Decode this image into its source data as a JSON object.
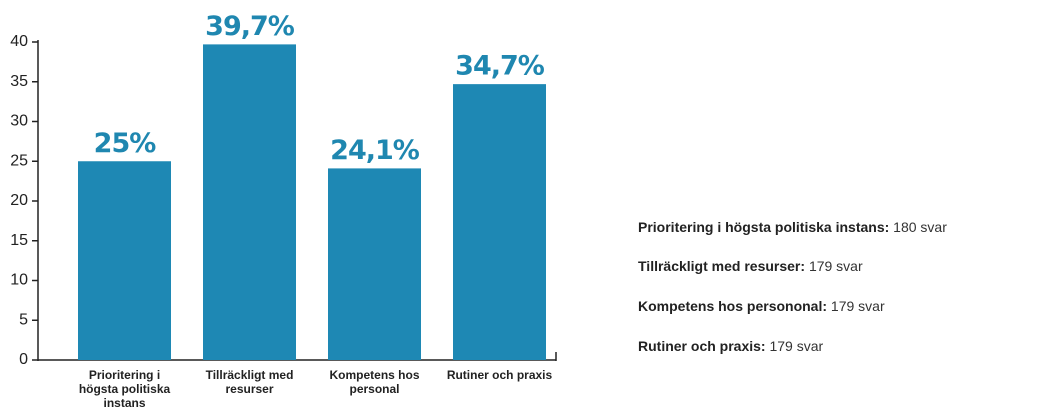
{
  "chart_data": {
    "type": "bar",
    "categories": [
      "Prioritering i högsta politiska instans",
      "Tillräckligt med resurser",
      "Kompetens hos personal",
      "Rutiner och praxis"
    ],
    "values": [
      25,
      39.7,
      24.1,
      34.7
    ],
    "value_labels": [
      "25%",
      "39,7%",
      "24,1%",
      "34,7%"
    ],
    "color": "#1e88b4",
    "ylim": [
      0,
      40
    ],
    "yticks": [
      0,
      5,
      10,
      15,
      20,
      25,
      30,
      35,
      40
    ],
    "grid": false,
    "notes": [
      {
        "label": "Prioritering i högsta politiska instans:",
        "text": "180 svar"
      },
      {
        "label": "Tillräckligt med resurser:",
        "text": "179 svar"
      },
      {
        "label": "Kompetens hos persononal:",
        "text": "179 svar"
      },
      {
        "label": "Rutiner och praxis:",
        "text": "179 svar"
      }
    ]
  }
}
